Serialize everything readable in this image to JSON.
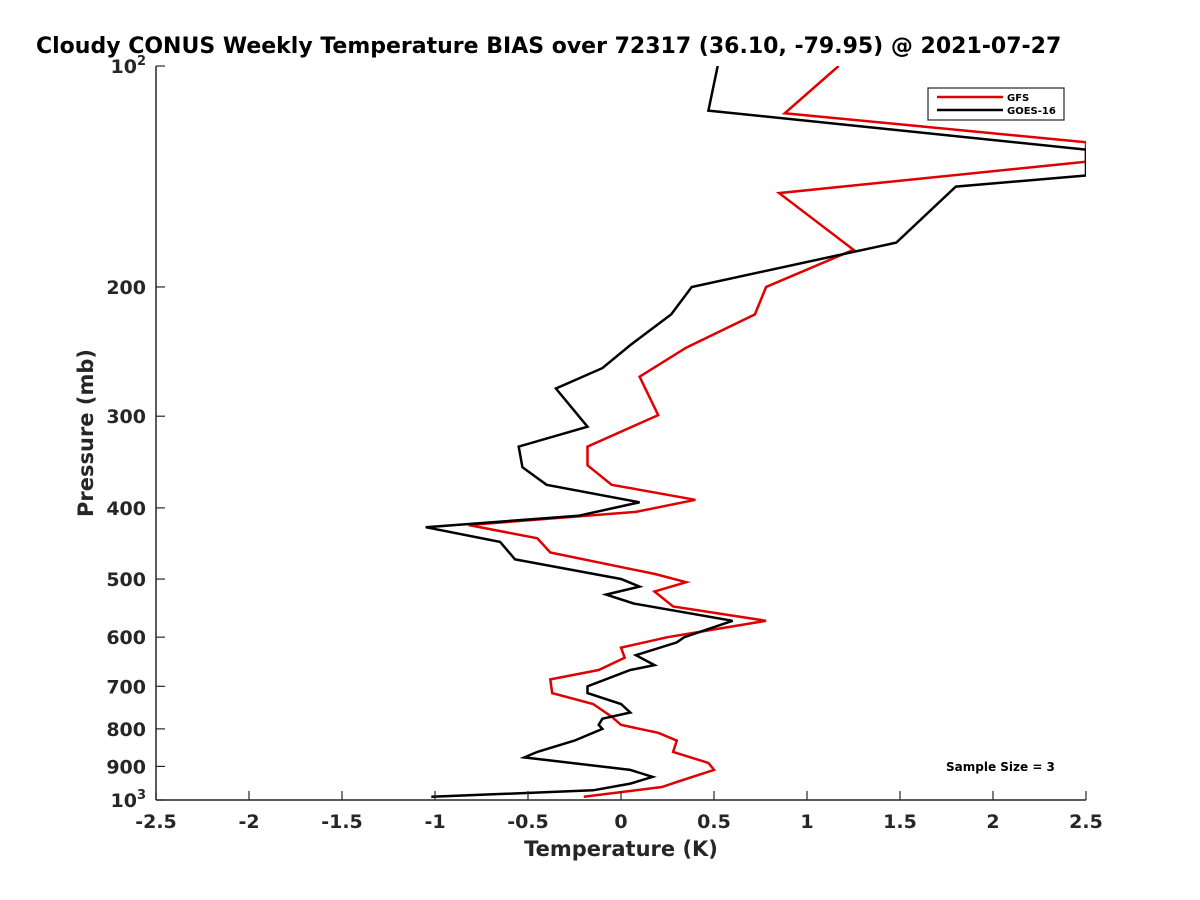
{
  "chart_data": {
    "type": "line",
    "title": "Cloudy CONUS Weekly Temperature BIAS over 72317 (36.10, -79.95) @ 2021-07-27",
    "xlabel": "Temperature (K)",
    "ylabel": "Pressure (mb)",
    "xlim": [
      -2.5,
      2.5
    ],
    "ylim": [
      100,
      1000
    ],
    "y_scale": "log",
    "y_reversed": true,
    "x_ticks": [
      "-2.5",
      "-2",
      "-1.5",
      "-1",
      "-0.5",
      "0",
      "0.5",
      "1",
      "1.5",
      "2",
      "2.5"
    ],
    "y_ticks": [
      {
        "value": 100,
        "base": "10",
        "exp": "2"
      },
      {
        "value": 200,
        "label": "200"
      },
      {
        "value": 300,
        "label": "300"
      },
      {
        "value": 400,
        "label": "400"
      },
      {
        "value": 500,
        "label": "500"
      },
      {
        "value": 600,
        "label": "600"
      },
      {
        "value": 700,
        "label": "700"
      },
      {
        "value": 800,
        "label": "800"
      },
      {
        "value": 900,
        "label": "900"
      },
      {
        "value": 1000,
        "base": "10",
        "exp": "3"
      }
    ],
    "grid": false,
    "legend_position": "top-right",
    "annotation": "Sample Size = 3",
    "series": [
      {
        "name": "GFS",
        "color": "#e00000",
        "points": [
          [
            1.17,
            100
          ],
          [
            0.88,
            116
          ],
          [
            2.5,
            127
          ],
          [
            2.5,
            135
          ],
          [
            0.85,
            149
          ],
          [
            1.25,
            178
          ],
          [
            0.78,
            200
          ],
          [
            0.72,
            218
          ],
          [
            0.35,
            242
          ],
          [
            0.1,
            265
          ],
          [
            0.2,
            299
          ],
          [
            -0.18,
            330
          ],
          [
            -0.18,
            350
          ],
          [
            -0.05,
            372
          ],
          [
            0.4,
            390
          ],
          [
            0.08,
            405
          ],
          [
            -0.82,
            422
          ],
          [
            -0.45,
            440
          ],
          [
            -0.38,
            460
          ],
          [
            0.18,
            492
          ],
          [
            0.35,
            505
          ],
          [
            0.18,
            520
          ],
          [
            0.28,
            545
          ],
          [
            0.78,
            570
          ],
          [
            0.25,
            600
          ],
          [
            0.0,
            620
          ],
          [
            0.02,
            640
          ],
          [
            -0.12,
            665
          ],
          [
            -0.38,
            685
          ],
          [
            -0.37,
            715
          ],
          [
            -0.15,
            740
          ],
          [
            -0.05,
            770
          ],
          [
            0.0,
            790
          ],
          [
            0.2,
            810
          ],
          [
            0.3,
            830
          ],
          [
            0.28,
            860
          ],
          [
            0.47,
            890
          ],
          [
            0.5,
            910
          ],
          [
            0.3,
            945
          ],
          [
            0.22,
            960
          ],
          [
            -0.2,
            990
          ]
        ]
      },
      {
        "name": "GOES-16",
        "color": "#000000",
        "points": [
          [
            0.52,
            100
          ],
          [
            0.47,
            115
          ],
          [
            2.5,
            130
          ],
          [
            2.5,
            141
          ],
          [
            1.8,
            146
          ],
          [
            1.48,
            174
          ],
          [
            0.38,
            200
          ],
          [
            0.27,
            218
          ],
          [
            0.05,
            240
          ],
          [
            -0.1,
            258
          ],
          [
            -0.35,
            275
          ],
          [
            -0.18,
            310
          ],
          [
            -0.55,
            330
          ],
          [
            -0.53,
            352
          ],
          [
            -0.4,
            372
          ],
          [
            0.1,
            393
          ],
          [
            -0.23,
            410
          ],
          [
            -1.05,
            425
          ],
          [
            -0.65,
            445
          ],
          [
            -0.57,
            470
          ],
          [
            0.0,
            500
          ],
          [
            0.1,
            512
          ],
          [
            -0.08,
            525
          ],
          [
            0.07,
            540
          ],
          [
            0.6,
            570
          ],
          [
            0.34,
            600
          ],
          [
            0.3,
            610
          ],
          [
            0.08,
            635
          ],
          [
            0.18,
            655
          ],
          [
            0.05,
            665
          ],
          [
            -0.18,
            700
          ],
          [
            -0.18,
            715
          ],
          [
            0.0,
            740
          ],
          [
            0.05,
            760
          ],
          [
            -0.1,
            775
          ],
          [
            -0.12,
            790
          ],
          [
            -0.1,
            800
          ],
          [
            -0.25,
            830
          ],
          [
            -0.45,
            860
          ],
          [
            -0.52,
            875
          ],
          [
            0.05,
            910
          ],
          [
            0.17,
            930
          ],
          [
            0.05,
            950
          ],
          [
            -0.15,
            970
          ],
          [
            -1.02,
            990
          ]
        ]
      }
    ]
  }
}
